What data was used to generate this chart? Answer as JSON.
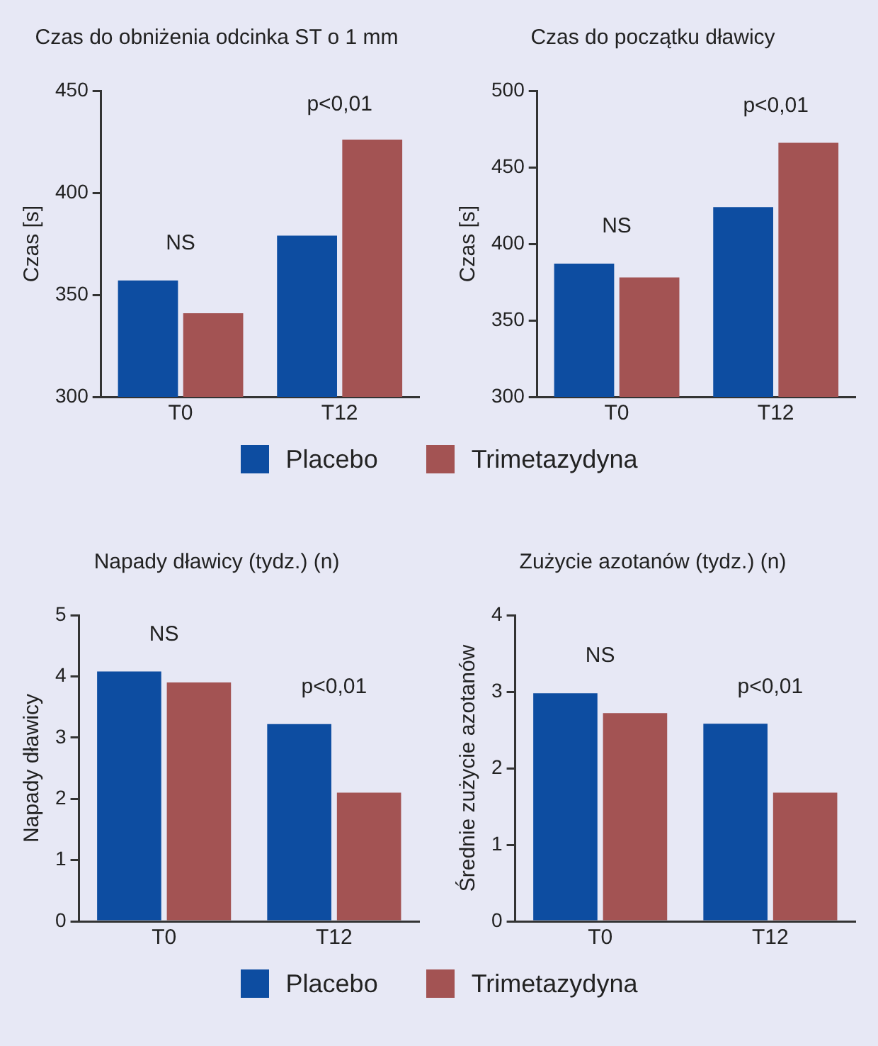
{
  "chart_data": [
    {
      "type": "bar",
      "title": "Czas do obniżenia odcinka ST o 1 mm",
      "ylabel": "Czas [s]",
      "categories": [
        "T0",
        "T12"
      ],
      "series": [
        {
          "name": "Placebo",
          "color": "#0d4da1",
          "values": [
            357,
            379
          ]
        },
        {
          "name": "Trimetazydyna",
          "color": "#a35353",
          "values": [
            341,
            426
          ]
        }
      ],
      "ylim": [
        300,
        450
      ],
      "yticks": [
        300,
        350,
        400,
        450
      ],
      "grid": false,
      "legend": "bottom",
      "annotations": [
        "NS",
        "p<0,01"
      ]
    },
    {
      "type": "bar",
      "title": "Czas do początku dławicy",
      "ylabel": "Czas [s]",
      "categories": [
        "T0",
        "T12"
      ],
      "series": [
        {
          "color": "#0d4da1",
          "values": [
            387,
            424
          ]
        },
        {
          "color": "#a35353",
          "values": [
            378,
            466
          ]
        }
      ],
      "ylim": [
        300,
        500
      ],
      "yticks": [
        300,
        350,
        400,
        450,
        500
      ],
      "grid": false,
      "annotations": [
        "NS",
        "p<0,01"
      ]
    },
    {
      "type": "bar",
      "title": "Napady dławicy (tydz.) (n)",
      "ylabel": "Napady dławicy",
      "categories": [
        "T0",
        "T12"
      ],
      "series": [
        {
          "name": "Placebo",
          "color": "#0d4da1",
          "values": [
            4.08,
            3.22
          ]
        },
        {
          "name": "Trimetazydyna",
          "color": "#a35353",
          "values": [
            3.9,
            2.1
          ]
        }
      ],
      "ylim": [
        0,
        5
      ],
      "yticks": [
        0,
        1,
        2,
        3,
        4,
        5
      ],
      "grid": false,
      "legend": "bottom",
      "annotations": [
        "NS",
        "p<0,01"
      ]
    },
    {
      "type": "bar",
      "title": "Zużycie azotanów (tydz.) (n)",
      "ylabel": "Średnie zużycie azotanów",
      "categories": [
        "T0",
        "T12"
      ],
      "series": [
        {
          "color": "#0d4da1",
          "values": [
            2.98,
            2.58
          ]
        },
        {
          "color": "#a35353",
          "values": [
            2.72,
            1.68
          ]
        }
      ],
      "ylim": [
        0,
        4
      ],
      "yticks": [
        0,
        1,
        2,
        3,
        4
      ],
      "grid": false,
      "annotations": [
        "NS",
        "p<0,01"
      ]
    }
  ]
}
